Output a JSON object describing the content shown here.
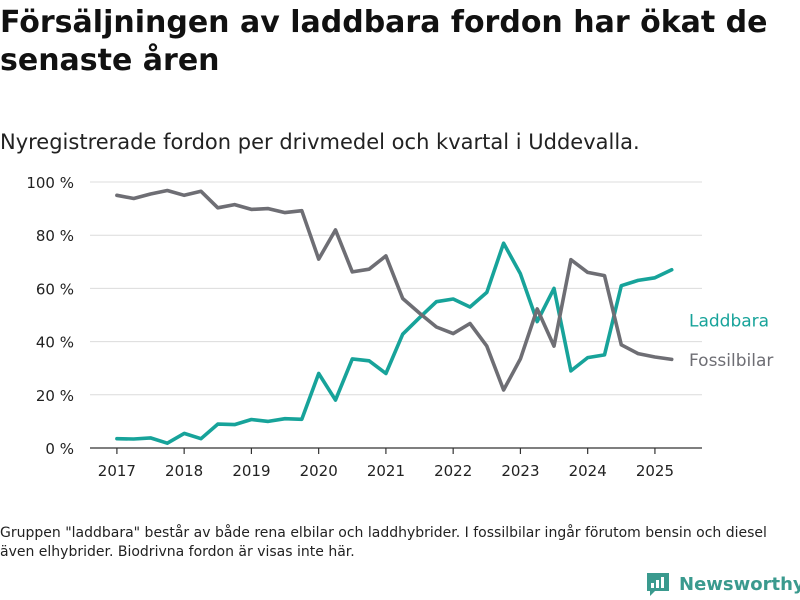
{
  "title": "Försäljningen av laddbara fordon har ökat de senaste åren",
  "subtitle": "Nyregistrerade fordon per drivmedel och kvartal i Uddevalla.",
  "caption": "Gruppen \"laddbara\" består av både rena elbilar och laddhybrider. I fossilbilar ingår förutom bensin och diesel även elhybrider. Biodrivna fordon är visas inte här.",
  "brand": "Newsworthy",
  "colors": {
    "laddbara": "#17a39a",
    "fossilbilar": "#6e6e74",
    "grid": "#dcdcdc",
    "axis": "#333333",
    "brand": "#3a9a8e"
  },
  "chart_data": {
    "type": "line",
    "x_unit": "year",
    "x": [
      2017.0,
      2017.25,
      2017.5,
      2017.75,
      2018.0,
      2018.25,
      2018.5,
      2018.75,
      2019.0,
      2019.25,
      2019.5,
      2019.75,
      2020.0,
      2020.25,
      2020.5,
      2020.75,
      2021.0,
      2021.25,
      2021.5,
      2021.75,
      2022.0,
      2022.25,
      2022.5,
      2022.75,
      2023.0,
      2023.25,
      2023.5,
      2023.75,
      2024.0,
      2024.25,
      2024.5,
      2024.75,
      2025.0,
      2025.25
    ],
    "series": [
      {
        "name": "Laddbara",
        "color": "#17a39a",
        "values": [
          3.5,
          3.4,
          3.8,
          1.8,
          5.5,
          3.5,
          9.0,
          8.8,
          10.7,
          10.0,
          11.0,
          10.8,
          28.0,
          18.0,
          33.5,
          32.8,
          28.0,
          42.8,
          49.0,
          55.0,
          56.0,
          53.0,
          58.5,
          77.0,
          65.5,
          47.5,
          60.0,
          29.0,
          34.0,
          35.0,
          61.0,
          63.0,
          64.0,
          67.0
        ]
      },
      {
        "name": "Fossilbilar",
        "color": "#6e6e74",
        "values": [
          95.0,
          93.8,
          95.5,
          96.8,
          95.0,
          96.5,
          90.3,
          91.5,
          89.7,
          90.0,
          88.5,
          89.2,
          71.0,
          82.0,
          66.2,
          67.2,
          72.2,
          56.2,
          50.7,
          45.5,
          43.0,
          46.8,
          38.3,
          21.8,
          33.5,
          52.3,
          38.3,
          70.8,
          66.0,
          64.8,
          38.8,
          35.5,
          34.2,
          33.3
        ]
      }
    ],
    "xticks": [
      2017,
      2018,
      2019,
      2020,
      2021,
      2022,
      2023,
      2024,
      2025
    ],
    "xtick_labels": [
      "2017",
      "2018",
      "2019",
      "2020",
      "2021",
      "2022",
      "2023",
      "2024",
      "2025"
    ],
    "yticks": [
      0,
      20,
      40,
      60,
      80,
      100
    ],
    "ytick_labels": [
      "0 %",
      "20 %",
      "40 %",
      "60 %",
      "80 %",
      "100 %"
    ],
    "xlim": [
      2016.6,
      2025.7
    ],
    "ylim": [
      0,
      100
    ],
    "grid": "horizontal",
    "legend_placement": "right, inline at line ends",
    "labels": [
      {
        "series": "Laddbara",
        "text": "Laddbara",
        "y": 48
      },
      {
        "series": "Fossilbilar",
        "text": "Fossilbilar",
        "y": 33
      }
    ]
  }
}
